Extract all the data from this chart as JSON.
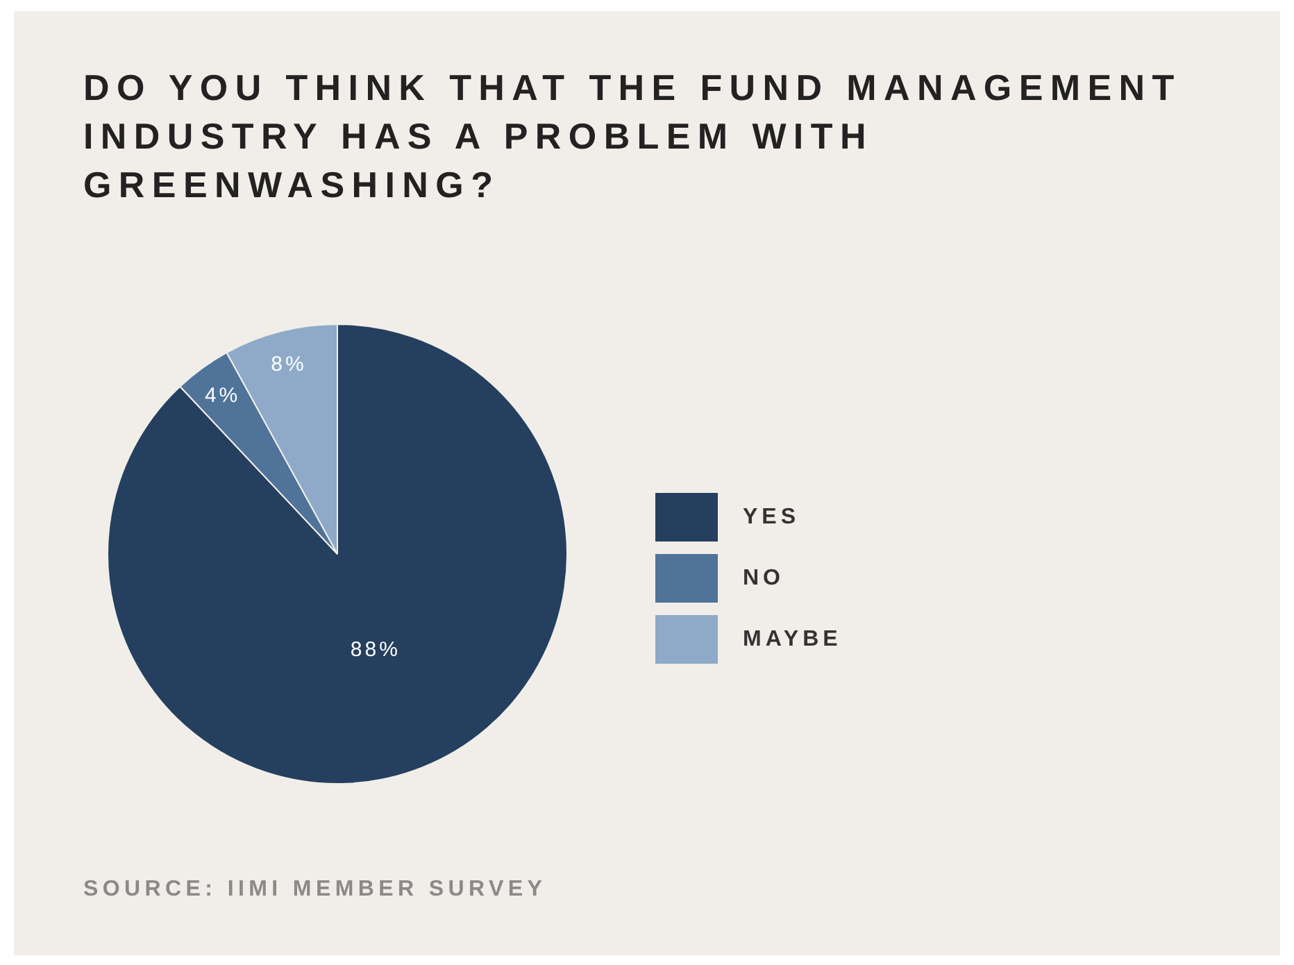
{
  "chart_data": {
    "type": "pie",
    "title": "DO YOU THINK THAT THE FUND MANAGEMENT INDUSTRY HAS A PROBLEM WITH GREENWASHING?",
    "categories": [
      "YES",
      "NO",
      "MAYBE"
    ],
    "values": [
      88,
      4,
      8
    ],
    "colors": [
      "#253f5f",
      "#4f7399",
      "#8eaac8"
    ],
    "value_labels": [
      "88%",
      "4%",
      "8%"
    ],
    "legend": "right",
    "annotations": [
      "SOURCE: IIMI MEMBER SURVEY"
    ]
  }
}
